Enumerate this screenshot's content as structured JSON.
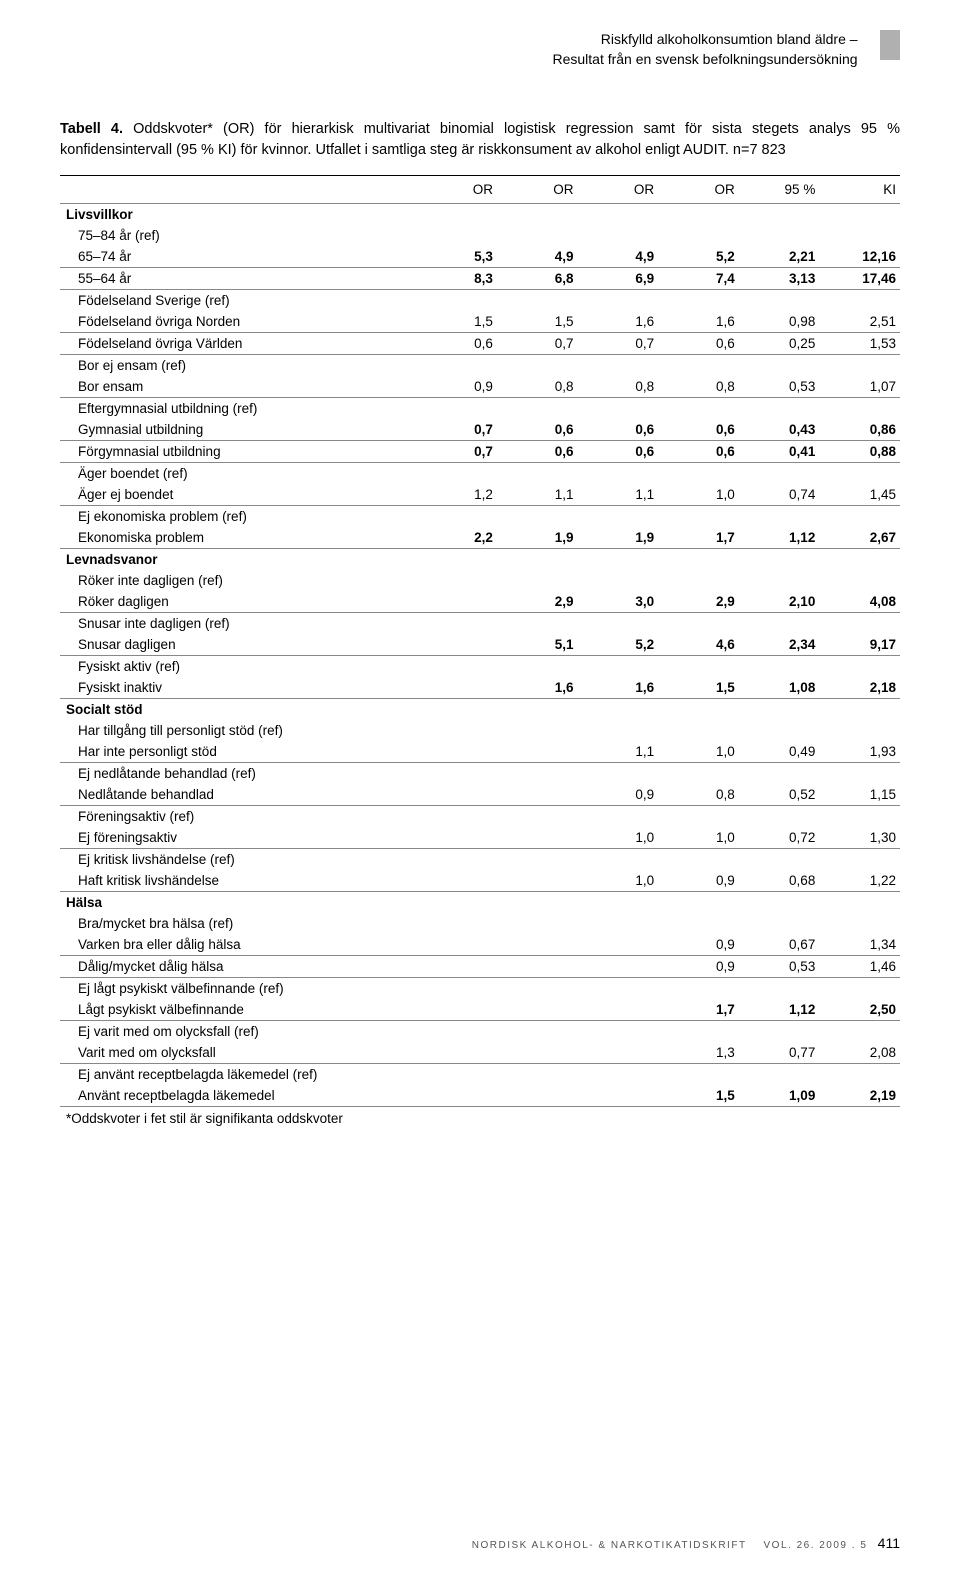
{
  "header": {
    "line1": "Riskfylld alkoholkonsumtion bland äldre –",
    "line2": "Resultat från en svensk befolkningsundersökning"
  },
  "caption": {
    "lead": "Tabell 4.",
    "text": " Oddskvoter* (OR) för hierarkisk multivariat binomial logistisk regression samt för sista stegets analys 95 % konfidensintervall (95 % KI) för kvinnor. Utfallet i samtliga steg är riskkonsument av alkohol enligt AUDIT. n=7 823"
  },
  "columns": [
    "",
    "OR",
    "OR",
    "OR",
    "OR",
    "95 %",
    "KI"
  ],
  "rows": [
    {
      "label": "Livsvillkor",
      "bold": true
    },
    {
      "label": "75–84 år (ref)",
      "indent": 1
    },
    {
      "label": "65–74 år",
      "indent": 1,
      "vals": [
        "5,3",
        "4,9",
        "4,9",
        "5,2",
        "2,21",
        "12,16"
      ],
      "bold": true,
      "line": true
    },
    {
      "label": "55–64 år",
      "indent": 1,
      "vals": [
        "8,3",
        "6,8",
        "6,9",
        "7,4",
        "3,13",
        "17,46"
      ],
      "bold": true,
      "line": true
    },
    {
      "label": "Födelseland Sverige (ref)",
      "indent": 1
    },
    {
      "label": "Födelseland övriga Norden",
      "indent": 1,
      "vals": [
        "1,5",
        "1,5",
        "1,6",
        "1,6",
        "0,98",
        "2,51"
      ],
      "line": true
    },
    {
      "label": "Födelseland övriga Världen",
      "indent": 1,
      "vals": [
        "0,6",
        "0,7",
        "0,7",
        "0,6",
        "0,25",
        "1,53"
      ],
      "line": true
    },
    {
      "label": "Bor ej ensam (ref)",
      "indent": 1
    },
    {
      "label": "Bor ensam",
      "indent": 1,
      "vals": [
        "0,9",
        "0,8",
        "0,8",
        "0,8",
        "0,53",
        "1,07"
      ],
      "line": true
    },
    {
      "label": "Eftergymnasial utbildning (ref)",
      "indent": 1
    },
    {
      "label": "Gymnasial utbildning",
      "indent": 1,
      "vals": [
        "0,7",
        "0,6",
        "0,6",
        "0,6",
        "0,43",
        "0,86"
      ],
      "bold": true,
      "line": true
    },
    {
      "label": "Förgymnasial utbildning",
      "indent": 1,
      "vals": [
        "0,7",
        "0,6",
        "0,6",
        "0,6",
        "0,41",
        "0,88"
      ],
      "bold": true,
      "line": true
    },
    {
      "label": "Äger boendet (ref)",
      "indent": 1
    },
    {
      "label": "Äger ej boendet",
      "indent": 1,
      "vals": [
        "1,2",
        "1,1",
        "1,1",
        "1,0",
        "0,74",
        "1,45"
      ],
      "line": true
    },
    {
      "label": "Ej ekonomiska problem (ref)",
      "indent": 1
    },
    {
      "label": "Ekonomiska problem",
      "indent": 1,
      "vals": [
        "2,2",
        "1,9",
        "1,9",
        "1,7",
        "1,12",
        "2,67"
      ],
      "bold": true,
      "line": true
    },
    {
      "label": "Levnadsvanor",
      "bold": true
    },
    {
      "label": "Röker inte dagligen (ref)",
      "indent": 1
    },
    {
      "label": "Röker dagligen",
      "indent": 1,
      "vals": [
        "",
        "2,9",
        "3,0",
        "2,9",
        "2,10",
        "4,08"
      ],
      "bold": true,
      "line": true
    },
    {
      "label": "Snusar inte dagligen (ref)",
      "indent": 1
    },
    {
      "label": "Snusar dagligen",
      "indent": 1,
      "vals": [
        "",
        "5,1",
        "5,2",
        "4,6",
        "2,34",
        "9,17"
      ],
      "bold": true,
      "line": true
    },
    {
      "label": "Fysiskt aktiv (ref)",
      "indent": 1
    },
    {
      "label": "Fysiskt inaktiv",
      "indent": 1,
      "vals": [
        "",
        "1,6",
        "1,6",
        "1,5",
        "1,08",
        "2,18"
      ],
      "bold": true,
      "line": true
    },
    {
      "label": "Socialt stöd",
      "bold": true
    },
    {
      "label": "Har tillgång till personligt stöd (ref)",
      "indent": 1
    },
    {
      "label": "Har inte personligt stöd",
      "indent": 1,
      "vals": [
        "",
        "",
        "1,1",
        "1,0",
        "0,49",
        "1,93"
      ],
      "line": true
    },
    {
      "label": "Ej nedlåtande behandlad (ref)",
      "indent": 1
    },
    {
      "label": "Nedlåtande behandlad",
      "indent": 1,
      "vals": [
        "",
        "",
        "0,9",
        "0,8",
        "0,52",
        "1,15"
      ],
      "line": true
    },
    {
      "label": "Föreningsaktiv (ref)",
      "indent": 1
    },
    {
      "label": "Ej föreningsaktiv",
      "indent": 1,
      "vals": [
        "",
        "",
        "1,0",
        "1,0",
        "0,72",
        "1,30"
      ],
      "line": true
    },
    {
      "label": "Ej kritisk livshändelse (ref)",
      "indent": 1
    },
    {
      "label": "Haft kritisk livshändelse",
      "indent": 1,
      "vals": [
        "",
        "",
        "1,0",
        "0,9",
        "0,68",
        "1,22"
      ],
      "line": true
    },
    {
      "label": "Hälsa",
      "bold": true
    },
    {
      "label": "Bra/mycket bra hälsa (ref)",
      "indent": 1
    },
    {
      "label": "Varken bra eller dålig hälsa",
      "indent": 1,
      "vals": [
        "",
        "",
        "",
        "0,9",
        "0,67",
        "1,34"
      ],
      "line": true
    },
    {
      "label": "Dålig/mycket dålig hälsa",
      "indent": 1,
      "vals": [
        "",
        "",
        "",
        "0,9",
        "0,53",
        "1,46"
      ],
      "line": true
    },
    {
      "label": "Ej lågt psykiskt välbefinnande (ref)",
      "indent": 1
    },
    {
      "label": "Lågt psykiskt välbefinnande",
      "indent": 1,
      "vals": [
        "",
        "",
        "",
        "1,7",
        "1,12",
        "2,50"
      ],
      "bold": true,
      "line": true
    },
    {
      "label": "Ej varit med om olycksfall (ref)",
      "indent": 1
    },
    {
      "label": "Varit med om olycksfall",
      "indent": 1,
      "vals": [
        "",
        "",
        "",
        "1,3",
        "0,77",
        "2,08"
      ],
      "line": true
    },
    {
      "label": "Ej använt receptbelagda läkemedel (ref)",
      "indent": 1
    },
    {
      "label": "Använt receptbelagda läkemedel",
      "indent": 1,
      "vals": [
        "",
        "",
        "",
        "1,5",
        "1,09",
        "2,19"
      ],
      "bold": true,
      "line": true
    }
  ],
  "footnote": "*Oddskvoter i fet stil är signifikanta oddskvoter",
  "footer": {
    "journal": "NORDISK ALKOHOL- & NARKOTIKATIDSKRIFT",
    "vol": "VOL. 26. 2009 . 5",
    "page": "411"
  }
}
